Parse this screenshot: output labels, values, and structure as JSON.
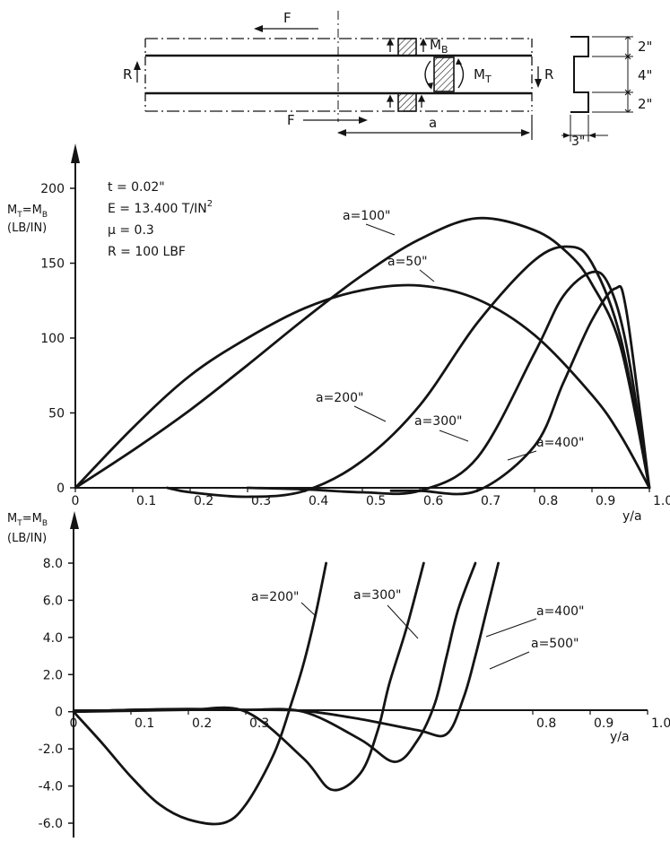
{
  "schematic": {
    "force_top": "F",
    "force_bottom": "F",
    "reaction_left": "R",
    "reaction_right": "R",
    "moment_bending": "M",
    "moment_bending_sub": "B",
    "moment_torsion": "M",
    "moment_torsion_sub": "T",
    "span_label": "a",
    "dim_top_flange": "2\"",
    "dim_web": "4\"",
    "dim_bottom_flange": "2\"",
    "dim_width": "3\""
  },
  "params": {
    "thickness": "t  =  0.02\"",
    "modulus": "E  =  13.400  T/IN",
    "modulus_sup": "2",
    "poisson": "μ  =  0.3",
    "load": "R  =  100  LBF"
  },
  "chart_data": [
    {
      "type": "line",
      "ylabel_line1": "M",
      "ylabel_line1_sub": "T",
      "ylabel_line1_rest": "=M",
      "ylabel_line1_sub2": "B",
      "ylabel_line2": "(LB/IN)",
      "xlabel": "y/a",
      "xlim": [
        0,
        1.0
      ],
      "ylim": [
        0,
        200
      ],
      "x_ticks": [
        0,
        0.1,
        0.2,
        0.3,
        0.4,
        0.5,
        0.6,
        0.7,
        0.8,
        0.9,
        1.0
      ],
      "x_tick_labels": [
        "0",
        "0.1",
        "0.2",
        "0.3",
        "0.4",
        "0.5",
        "0.6",
        "0.7",
        "0.8",
        "0.9",
        "1.0"
      ],
      "y_ticks": [
        0,
        50,
        100,
        150,
        200
      ],
      "y_tick_labels": [
        "0",
        "50",
        "100",
        "150",
        "200"
      ],
      "series": [
        {
          "name": "a=50\"",
          "x": [
            0,
            0.1,
            0.2,
            0.3,
            0.4,
            0.5,
            0.6,
            0.7,
            0.8,
            0.9,
            0.95,
            1.0
          ],
          "y": [
            0,
            40,
            75,
            100,
            120,
            132,
            135,
            126,
            102,
            62,
            35,
            0
          ]
        },
        {
          "name": "a=100\"",
          "x": [
            0,
            0.1,
            0.2,
            0.3,
            0.4,
            0.5,
            0.6,
            0.7,
            0.8,
            0.86,
            0.9,
            0.95,
            1.0
          ],
          "y": [
            0,
            25,
            52,
            82,
            113,
            142,
            166,
            180,
            172,
            156,
            136,
            94,
            0
          ]
        },
        {
          "name": "a=200\"",
          "x": [
            0.16,
            0.2,
            0.3,
            0.4,
            0.5,
            0.6,
            0.7,
            0.8,
            0.86,
            0.9,
            0.95,
            1.0
          ],
          "y": [
            0,
            -3,
            -6,
            -2,
            18,
            55,
            110,
            152,
            161,
            150,
            100,
            0
          ]
        },
        {
          "name": "a=300\"",
          "x": [
            0.3,
            0.4,
            0.5,
            0.6,
            0.7,
            0.8,
            0.85,
            0.9,
            0.93,
            0.96,
            1.0
          ],
          "y": [
            0,
            -1,
            -3,
            -2,
            20,
            90,
            128,
            144,
            135,
            95,
            0
          ]
        },
        {
          "name": "a=400\"",
          "x": [
            0.55,
            0.6,
            0.7,
            0.8,
            0.85,
            0.9,
            0.94,
            0.96,
            1.0
          ],
          "y": [
            -2,
            -2,
            -2,
            28,
            70,
            112,
            133,
            118,
            0
          ]
        }
      ]
    },
    {
      "type": "line",
      "ylabel_line1": "M",
      "ylabel_line1_sub": "T",
      "ylabel_line1_rest": "=M",
      "ylabel_line1_sub2": "B",
      "ylabel_line2": "(LB/IN)",
      "xlabel": "y/a",
      "xlim": [
        0,
        1.0
      ],
      "ylim": [
        -6.0,
        8.0
      ],
      "x_ticks": [
        0,
        0.1,
        0.2,
        0.3,
        0.8,
        0.9,
        1.0
      ],
      "x_tick_labels": [
        "0",
        "0.1",
        "0.2",
        "0.3",
        "0.8",
        "0.9",
        "1.0"
      ],
      "y_ticks": [
        8.0,
        6.0,
        4.0,
        2.0,
        0,
        -2.0,
        -4.0,
        -6.0
      ],
      "y_tick_labels": [
        "8.0",
        "6.0",
        "4.0",
        "2.0",
        "0",
        "-2.0",
        "-4.0",
        "-6.0"
      ],
      "series": [
        {
          "name": "a=200\"",
          "x": [
            0,
            0.05,
            0.1,
            0.15,
            0.2,
            0.26,
            0.3,
            0.35,
            0.38,
            0.4,
            0.42,
            0.44
          ],
          "y": [
            0,
            -1.7,
            -3.5,
            -5.0,
            -5.8,
            -6.0,
            -5.0,
            -2.2,
            0.5,
            2.5,
            5.0,
            8.0
          ]
        },
        {
          "name": "a=300\"",
          "x": [
            0,
            0.1,
            0.2,
            0.3,
            0.4,
            0.45,
            0.5,
            0.53,
            0.55,
            0.58,
            0.61
          ],
          "y": [
            0,
            0.1,
            0.1,
            0,
            -2.5,
            -4.2,
            -3.3,
            -1.0,
            1.5,
            4.5,
            8.0
          ]
        },
        {
          "name": "a=400\"",
          "x": [
            0,
            0.1,
            0.2,
            0.3,
            0.4,
            0.5,
            0.56,
            0.6,
            0.63,
            0.65,
            0.67,
            0.7
          ],
          "y": [
            0,
            0.1,
            0.15,
            0.1,
            0,
            -1.5,
            -2.7,
            -1.5,
            0.5,
            3.0,
            5.5,
            8.0
          ]
        },
        {
          "name": "a=500\"",
          "x": [
            0,
            0.1,
            0.2,
            0.3,
            0.4,
            0.5,
            0.6,
            0.65,
            0.68,
            0.7,
            0.72,
            0.74
          ],
          "y": [
            0,
            0.05,
            0.1,
            0.1,
            0.05,
            -0.4,
            -1.0,
            -1.2,
            0.8,
            3.0,
            5.5,
            8.0
          ]
        }
      ]
    }
  ]
}
